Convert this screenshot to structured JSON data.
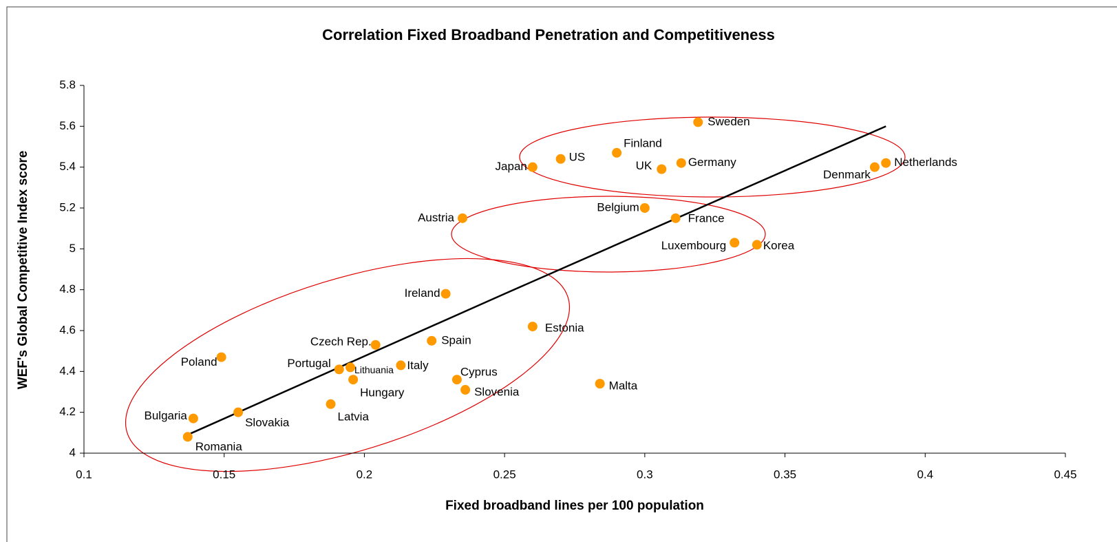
{
  "chart_data": {
    "type": "scatter",
    "title": "Correlation Fixed Broadband Penetration and Competitiveness",
    "xlabel": "Fixed broadband lines per 100 population",
    "ylabel": "WEF's Global Competitive Index score",
    "labels": [
      "Sweden",
      "Finland",
      "US",
      "Japan",
      "UK",
      "Germany",
      "Denmark",
      "Netherlands",
      "Belgium",
      "France",
      "Austria",
      "Luxembourg",
      "Korea",
      "Ireland",
      "Estonia",
      "Spain",
      "Czech Rep.",
      "Poland",
      "Italy",
      "Lithuania",
      "Portugal",
      "Hungary",
      "Cyprus",
      "Slovenia",
      "Malta",
      "Latvia",
      "Slovakia",
      "Bulgaria",
      "Romania"
    ],
    "x": [
      0.319,
      0.29,
      0.27,
      0.26,
      0.306,
      0.313,
      0.382,
      0.386,
      0.3,
      0.311,
      0.235,
      0.332,
      0.34,
      0.229,
      0.26,
      0.224,
      0.204,
      0.149,
      0.213,
      0.195,
      0.191,
      0.196,
      0.233,
      0.236,
      0.284,
      0.188,
      0.155,
      0.139,
      0.137
    ],
    "y": [
      5.62,
      5.47,
      5.44,
      5.4,
      5.39,
      5.42,
      5.4,
      5.42,
      5.2,
      5.15,
      5.15,
      5.03,
      5.02,
      4.78,
      4.62,
      4.55,
      4.53,
      4.47,
      4.43,
      4.42,
      4.41,
      4.36,
      4.36,
      4.31,
      4.34,
      4.24,
      4.2,
      4.17,
      4.08
    ],
    "color": "#ff9900",
    "trendline": {
      "x": [
        0.137,
        0.25,
        0.386
      ],
      "y": [
        4.09,
        4.78,
        5.6
      ],
      "color": "#000000"
    },
    "xlim": [
      0.1,
      0.45
    ],
    "xticks": [
      0.1,
      0.15,
      0.2,
      0.25,
      0.3,
      0.35,
      0.4,
      0.45
    ],
    "ylim": [
      4,
      5.8
    ],
    "yticks": [
      4,
      4.2,
      4.4,
      4.6,
      4.8,
      5,
      5.2,
      5.4,
      5.6,
      5.8
    ],
    "grid": false
  }
}
